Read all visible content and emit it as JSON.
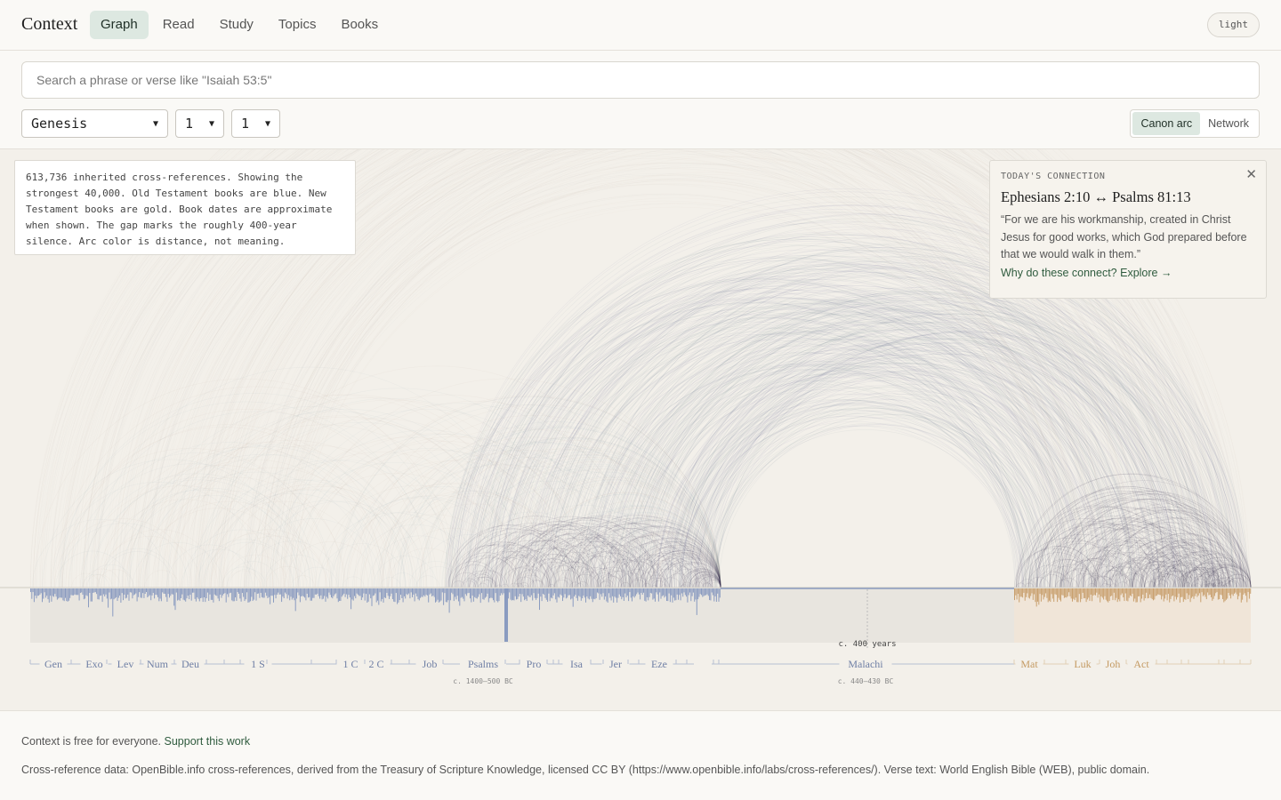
{
  "app": {
    "logo": "Context",
    "theme_toggle": "light"
  },
  "nav": {
    "tabs": [
      {
        "label": "Graph",
        "active": true
      },
      {
        "label": "Read",
        "active": false
      },
      {
        "label": "Study",
        "active": false
      },
      {
        "label": "Topics",
        "active": false
      },
      {
        "label": "Books",
        "active": false
      }
    ]
  },
  "search": {
    "placeholder": "Search a phrase or verse like \"Isaiah 53:5\"",
    "value": ""
  },
  "selectors": {
    "book": "Genesis",
    "chapter": "1",
    "verse": "1"
  },
  "view_toggle": {
    "options": [
      "Canon arc",
      "Network"
    ],
    "active": "Canon arc"
  },
  "info_box": {
    "text": "613,736 inherited cross-references. Showing the strongest 40,000. Old Testament books are blue. New Testament books are gold. Book dates are approximate when shown. The gap marks the roughly 400-year silence. Arc color is distance, not meaning."
  },
  "todays_connection": {
    "label": "TODAY'S CONNECTION",
    "from": "Ephesians 2:10",
    "arrow": "↔",
    "to": "Psalms 81:13",
    "quote": "“For we are his workmanship, created in Christ Jesus for good works, which God prepared before that we would walk in them.”",
    "link": "Why do these connect? Explore →",
    "close_icon": "close-icon"
  },
  "axis": {
    "ot_books": [
      "Gen",
      "Exo",
      "Lev",
      "Num",
      "Deu",
      "1 S",
      "1 C",
      "2 C",
      "Job",
      "Psalms",
      "Pro",
      "Isa",
      "Jer",
      "Eze",
      "Malachi"
    ],
    "nt_books": [
      "Mat",
      "Luk",
      "Joh",
      "Act"
    ],
    "gap_label": "c. 400 years",
    "date_labels": [
      "c. 1400–500 BC",
      "c. 440–430 BC"
    ]
  },
  "colors": {
    "ot": "#8a9bc0",
    "nt": "#c9a06e",
    "accent_green": "#2f5b3e",
    "active_tab": "#dde8e1"
  },
  "footer": {
    "support_text": "Context is free for everyone.",
    "support_link": "Support this work",
    "credits": "Cross-reference data: OpenBible.info cross-references, derived from the Treasury of Scripture Knowledge, licensed CC BY (https://www.openbible.info/labs/cross-references/). Verse text: World English Bible (WEB), public domain."
  }
}
